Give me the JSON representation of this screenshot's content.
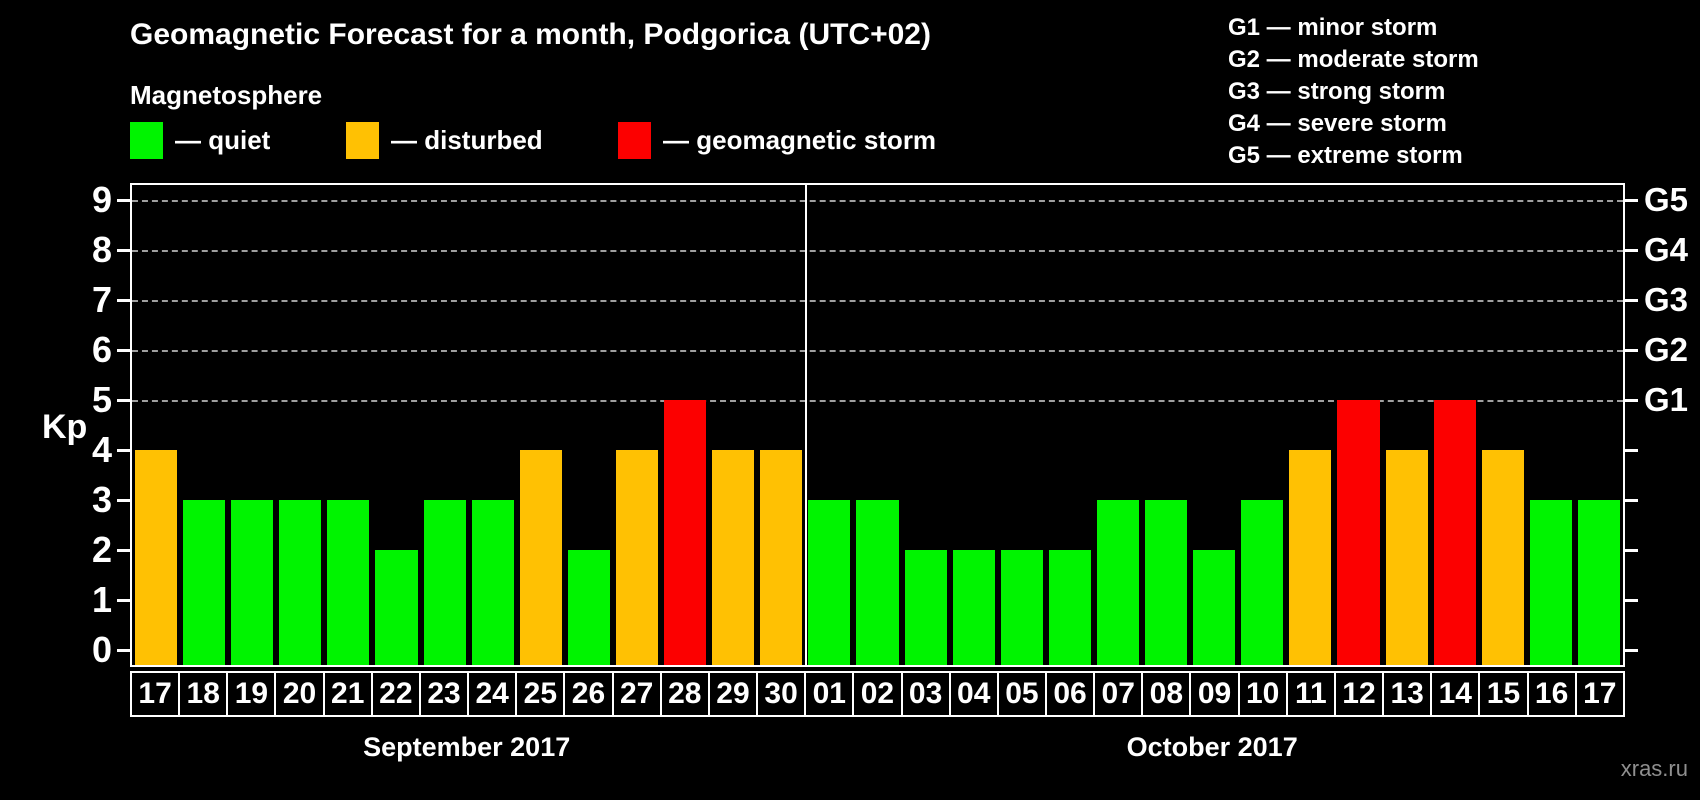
{
  "title": "Geomagnetic Forecast for a month, Podgorica (UTC+02)",
  "legend": {
    "heading": "Magnetosphere",
    "items": [
      {
        "status": "quiet",
        "label": "— quiet",
        "color": "#00f400"
      },
      {
        "status": "disturbed",
        "label": "— disturbed",
        "color": "#ffc103"
      },
      {
        "status": "storm",
        "label": "— geomagnetic storm",
        "color": "#fc0000"
      }
    ]
  },
  "g_scale_legend": [
    "G1 — minor storm",
    "G2 — moderate storm",
    "G3 — strong storm",
    "G4 — severe storm",
    "G5 — extreme storm"
  ],
  "watermark": "xras.ru",
  "chart_data": {
    "type": "bar",
    "ylabel": "Kp",
    "ylim": [
      0,
      9.3
    ],
    "yticks": [
      0,
      1,
      2,
      3,
      4,
      5,
      6,
      7,
      8,
      9
    ],
    "gridlines_at_kp": [
      5,
      6,
      7,
      8,
      9
    ],
    "grid_style": "dashed",
    "right_axis_labels": [
      {
        "label": "G1",
        "kp": 5
      },
      {
        "label": "G2",
        "kp": 6
      },
      {
        "label": "G3",
        "kp": 7
      },
      {
        "label": "G4",
        "kp": 8
      },
      {
        "label": "G5",
        "kp": 9
      }
    ],
    "color_map": {
      "quiet": "#00f400",
      "disturbed": "#ffc103",
      "storm": "#fc0000"
    },
    "groups": [
      {
        "month": "September 2017",
        "days": [
          "17",
          "18",
          "19",
          "20",
          "21",
          "22",
          "23",
          "24",
          "25",
          "26",
          "27",
          "28",
          "29",
          "30"
        ],
        "values": [
          4,
          3,
          3,
          3,
          3,
          2,
          3,
          3,
          4,
          2,
          4,
          5,
          4,
          4
        ],
        "statuses": [
          "disturbed",
          "quiet",
          "quiet",
          "quiet",
          "quiet",
          "quiet",
          "quiet",
          "quiet",
          "disturbed",
          "quiet",
          "disturbed",
          "storm",
          "disturbed",
          "disturbed"
        ]
      },
      {
        "month": "October 2017",
        "days": [
          "01",
          "02",
          "03",
          "04",
          "05",
          "06",
          "07",
          "08",
          "09",
          "10",
          "11",
          "12",
          "13",
          "14",
          "15",
          "16",
          "17"
        ],
        "values": [
          3,
          3,
          2,
          2,
          2,
          2,
          3,
          3,
          2,
          3,
          4,
          5,
          4,
          5,
          4,
          3,
          3
        ],
        "statuses": [
          "quiet",
          "quiet",
          "quiet",
          "quiet",
          "quiet",
          "quiet",
          "quiet",
          "quiet",
          "quiet",
          "quiet",
          "disturbed",
          "storm",
          "disturbed",
          "storm",
          "disturbed",
          "quiet",
          "quiet"
        ]
      }
    ]
  }
}
